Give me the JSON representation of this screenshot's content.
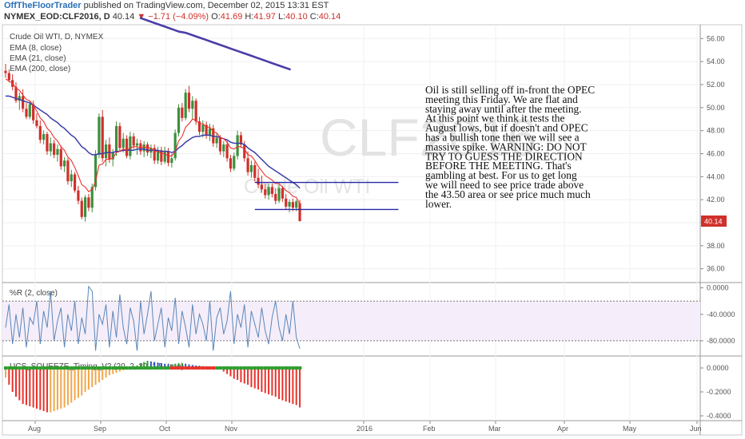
{
  "header": {
    "publisher": "OffTheFloorTrader",
    "published_text": "published on TradingView.com, December 02, 2015 13:31 EST",
    "symbol": "NYMEX_EOD:CLF2016, D",
    "last": "40.14",
    "change_arrow": "▼",
    "change": "−1.71 (−4.09%)",
    "o_label": "O:",
    "o_value": "41.69",
    "h_label": "H:",
    "h_value": "41.97",
    "l_label": "L:",
    "l_value": "40.10",
    "c_label": "C:",
    "c_value": "40.14"
  },
  "colors": {
    "up": "#3d8f3d",
    "down": "#d0302b",
    "ema8": "#e8322b",
    "ema21": "#3b3fa8",
    "ema200": "#4a3ea8",
    "level": "#2626a8",
    "wr": "#5a86b8",
    "hist_red": "#e8322b",
    "hist_orange": "#f2a74a",
    "hist_green": "#3b9a3b",
    "hist_blue": "#2f52c0",
    "dot_green": "#2e9e2e",
    "dot_red": "#e8322b"
  },
  "chart_data": [
    {
      "type": "candlestick",
      "title": "Crude Oil WTI, D, NYMEX",
      "watermark_symbol": "CLF2016",
      "watermark_name": "Crude Oil WTI",
      "legend": [
        "EMA (8, close)",
        "EMA (21, close)",
        "EMA (200, close)"
      ],
      "y_ticks": [
        "56.00",
        "54.00",
        "52.00",
        "50.00",
        "48.00",
        "46.00",
        "44.00",
        "42.00",
        "40.00",
        "38.00",
        "36.00"
      ],
      "ylim": [
        34.8,
        57.2
      ],
      "last_price_label": "40.14",
      "x_ticks": [
        "Aug",
        "Sep",
        "Oct",
        "Nov",
        "2016",
        "Feb",
        "Mar",
        "Apr",
        "May",
        "Jun"
      ],
      "levels": [
        43.5,
        41.15
      ],
      "ohlc": [
        [
          53.2,
          53.8,
          52.6,
          53.0
        ],
        [
          53.0,
          53.3,
          52.2,
          52.4
        ],
        [
          52.4,
          52.9,
          51.5,
          51.8
        ],
        [
          51.8,
          52.2,
          50.4,
          50.6
        ],
        [
          50.6,
          51.3,
          49.8,
          51.0
        ],
        [
          51.0,
          51.6,
          49.6,
          49.9
        ],
        [
          49.9,
          50.4,
          49.0,
          49.2
        ],
        [
          49.2,
          50.6,
          49.0,
          50.3
        ],
        [
          50.3,
          50.6,
          48.6,
          48.9
        ],
        [
          48.9,
          49.5,
          48.2,
          48.4
        ],
        [
          48.4,
          48.9,
          46.9,
          47.2
        ],
        [
          47.2,
          48.0,
          46.8,
          47.7
        ],
        [
          47.7,
          47.9,
          45.9,
          46.2
        ],
        [
          46.2,
          47.4,
          45.8,
          46.9
        ],
        [
          46.9,
          47.2,
          45.6,
          45.9
        ],
        [
          45.9,
          46.8,
          45.3,
          46.4
        ],
        [
          46.4,
          46.7,
          44.6,
          44.9
        ],
        [
          44.9,
          45.7,
          44.4,
          45.4
        ],
        [
          45.4,
          45.6,
          43.3,
          43.6
        ],
        [
          43.6,
          44.6,
          43.1,
          44.2
        ],
        [
          44.2,
          44.4,
          42.6,
          42.8
        ],
        [
          42.8,
          43.2,
          41.6,
          41.9
        ],
        [
          41.9,
          42.2,
          40.3,
          40.5
        ],
        [
          40.5,
          42.4,
          40.1,
          42.2
        ],
        [
          42.2,
          42.5,
          41.0,
          41.3
        ],
        [
          41.3,
          43.4,
          40.9,
          43.1
        ],
        [
          43.1,
          46.3,
          42.8,
          45.9
        ],
        [
          45.9,
          49.5,
          45.6,
          49.2
        ],
        [
          49.2,
          49.8,
          45.3,
          45.6
        ],
        [
          45.6,
          47.2,
          44.9,
          46.8
        ],
        [
          46.8,
          47.4,
          45.2,
          45.5
        ],
        [
          45.5,
          46.4,
          44.9,
          46.1
        ],
        [
          46.1,
          48.8,
          45.8,
          48.4
        ],
        [
          48.4,
          48.7,
          46.2,
          46.5
        ],
        [
          46.5,
          47.8,
          46.1,
          47.3
        ],
        [
          47.3,
          47.6,
          45.6,
          45.8
        ],
        [
          45.8,
          47.9,
          45.5,
          47.5
        ],
        [
          47.5,
          47.8,
          46.4,
          46.7
        ],
        [
          46.7,
          47.3,
          45.9,
          46.9
        ],
        [
          46.9,
          47.2,
          45.9,
          46.2
        ],
        [
          46.2,
          47.1,
          45.7,
          46.8
        ],
        [
          46.8,
          47.0,
          45.8,
          46.1
        ],
        [
          46.1,
          46.8,
          45.6,
          46.5
        ],
        [
          46.5,
          46.8,
          45.1,
          45.4
        ],
        [
          45.4,
          46.6,
          45.1,
          46.3
        ],
        [
          46.3,
          46.6,
          45.0,
          45.3
        ],
        [
          45.3,
          46.6,
          45.1,
          46.2
        ],
        [
          46.2,
          46.5,
          44.9,
          45.2
        ],
        [
          45.2,
          46.0,
          44.8,
          45.6
        ],
        [
          45.6,
          48.1,
          45.4,
          47.8
        ],
        [
          47.8,
          50.3,
          47.5,
          50.0
        ],
        [
          50.0,
          50.4,
          48.8,
          49.1
        ],
        [
          49.1,
          51.6,
          48.9,
          51.3
        ],
        [
          51.3,
          51.9,
          49.6,
          49.9
        ],
        [
          49.9,
          51.0,
          49.0,
          50.6
        ],
        [
          50.6,
          50.8,
          48.5,
          48.8
        ],
        [
          48.8,
          49.2,
          47.6,
          47.9
        ],
        [
          47.9,
          48.9,
          47.4,
          48.5
        ],
        [
          48.5,
          48.8,
          47.3,
          47.6
        ],
        [
          47.6,
          48.6,
          47.1,
          48.2
        ],
        [
          48.2,
          48.5,
          46.6,
          46.9
        ],
        [
          46.9,
          47.8,
          46.5,
          47.4
        ],
        [
          47.4,
          47.6,
          45.9,
          46.2
        ],
        [
          46.2,
          47.1,
          45.7,
          46.8
        ],
        [
          46.8,
          47.1,
          45.3,
          45.6
        ],
        [
          45.6,
          45.9,
          44.4,
          44.7
        ],
        [
          44.7,
          46.1,
          44.5,
          45.8
        ],
        [
          45.8,
          48.0,
          45.5,
          47.6
        ],
        [
          47.6,
          47.9,
          46.5,
          46.8
        ],
        [
          46.8,
          47.1,
          45.3,
          45.6
        ],
        [
          45.6,
          46.2,
          44.1,
          44.4
        ],
        [
          44.4,
          45.4,
          43.9,
          45.0
        ],
        [
          45.0,
          45.3,
          43.6,
          43.9
        ],
        [
          43.9,
          44.7,
          43.0,
          43.3
        ],
        [
          43.3,
          44.1,
          42.6,
          42.9
        ],
        [
          42.9,
          43.4,
          42.1,
          42.4
        ],
        [
          42.4,
          43.4,
          42.0,
          43.1
        ],
        [
          43.1,
          43.4,
          42.2,
          42.5
        ],
        [
          42.5,
          43.0,
          41.6,
          41.9
        ],
        [
          41.9,
          43.3,
          41.7,
          43.0
        ],
        [
          43.0,
          43.2,
          41.8,
          42.1
        ],
        [
          42.1,
          42.5,
          41.1,
          41.4
        ],
        [
          41.4,
          42.0,
          40.9,
          41.8
        ],
        [
          41.8,
          42.1,
          41.0,
          41.3
        ],
        [
          41.3,
          42.0,
          41.0,
          41.85
        ],
        [
          41.69,
          41.97,
          40.1,
          40.14
        ]
      ],
      "ema8": [
        52.5,
        52.3,
        52.1,
        51.7,
        51.5,
        51.1,
        50.7,
        50.6,
        50.2,
        49.7,
        49.1,
        48.8,
        48.2,
        47.9,
        47.4,
        47.1,
        46.6,
        46.3,
        45.7,
        45.4,
        44.8,
        44.1,
        43.3,
        43.1,
        42.7,
        42.9,
        43.6,
        45.0,
        45.1,
        45.5,
        45.5,
        45.6,
        46.1,
        46.2,
        46.4,
        46.3,
        46.5,
        46.6,
        46.6,
        46.5,
        46.6,
        46.5,
        46.5,
        46.2,
        46.2,
        46.0,
        46.0,
        45.8,
        45.8,
        46.2,
        47.1,
        47.5,
        48.3,
        48.6,
        49.0,
        48.9,
        48.6,
        48.6,
        48.3,
        48.3,
        47.9,
        47.8,
        47.4,
        47.3,
        47.0,
        46.5,
        46.4,
        46.6,
        46.6,
        46.4,
        45.9,
        45.8,
        45.4,
        44.9,
        44.5,
        44.1,
        43.9,
        43.7,
        43.4,
        43.4,
        43.1,
        42.8,
        42.6,
        42.3,
        42.2,
        41.6
      ],
      "ema21": [
        51.0,
        51.0,
        50.9,
        50.8,
        50.7,
        50.6,
        50.5,
        50.4,
        50.2,
        50.0,
        49.8,
        49.6,
        49.4,
        49.1,
        48.9,
        48.7,
        48.4,
        48.2,
        47.9,
        47.6,
        47.4,
        47.0,
        46.6,
        46.4,
        46.1,
        45.9,
        45.9,
        46.0,
        46.0,
        46.1,
        46.1,
        46.1,
        46.2,
        46.2,
        46.3,
        46.3,
        46.3,
        46.3,
        46.4,
        46.4,
        46.4,
        46.3,
        46.3,
        46.3,
        46.3,
        46.2,
        46.2,
        46.2,
        46.1,
        46.2,
        46.5,
        46.7,
        47.0,
        47.2,
        47.4,
        47.5,
        47.5,
        47.6,
        47.6,
        47.6,
        47.5,
        47.5,
        47.4,
        47.3,
        47.2,
        47.0,
        46.9,
        46.9,
        46.9,
        46.8,
        46.5,
        46.3,
        46.1,
        45.8,
        45.5,
        45.2,
        44.9,
        44.7,
        44.5,
        44.3,
        44.1,
        43.9,
        43.7,
        43.5,
        43.3,
        43.0
      ],
      "ema200": [
        57.8,
        57.6,
        57.4,
        57.2,
        57.0,
        56.8,
        56.6,
        56.5,
        56.3,
        56.1,
        55.9,
        55.7,
        55.5,
        55.3,
        55.1,
        54.9,
        54.7,
        54.5,
        54.3,
        54.1,
        53.9,
        53.7,
        53.5,
        53.3
      ]
    },
    {
      "type": "line",
      "title": "%R (2, close)",
      "y_ticks": [
        "0.0000",
        "-40.0000",
        "-80.0000"
      ],
      "ylim": [
        -103,
        8
      ],
      "band": [
        -20,
        -80
      ],
      "values": [
        -60,
        -25,
        -85,
        -40,
        -75,
        -30,
        -90,
        -45,
        -55,
        -20,
        -85,
        -35,
        -60,
        -5,
        -80,
        -50,
        -30,
        -90,
        -40,
        -65,
        -20,
        -85,
        -45,
        -70,
        2,
        -5,
        -95,
        -40,
        -55,
        -25,
        -90,
        -35,
        -75,
        -10,
        -60,
        -85,
        -30,
        -50,
        -95,
        -20,
        -70,
        -40,
        -5,
        -80,
        -55,
        -30,
        -90,
        -45,
        -65,
        -15,
        -85,
        -35,
        -60,
        -90,
        -25,
        -70,
        -40,
        -55,
        -80,
        -20,
        -95,
        -45,
        -30,
        -70,
        -50,
        -5,
        -85,
        -40,
        -60,
        -25,
        -90,
        -35,
        -55,
        -75,
        -30,
        -65,
        -85,
        -45,
        -20,
        -60,
        -80,
        -40,
        -70,
        -20,
        -75,
        -92
      ]
    },
    {
      "type": "bar",
      "title": "UCS_SQUEEZE_Timing_V2 (20, 2, 20, 1.5, true)",
      "y_ticks": [
        "0.0000",
        "-0.2000",
        "-0.4000"
      ],
      "ylim": [
        -0.44,
        0.1
      ],
      "values": [
        -0.08,
        -0.14,
        -0.2,
        -0.24,
        -0.27,
        -0.3,
        -0.31,
        -0.32,
        -0.33,
        -0.34,
        -0.35,
        -0.36,
        -0.37,
        -0.37,
        -0.36,
        -0.35,
        -0.34,
        -0.33,
        -0.31,
        -0.29,
        -0.27,
        -0.25,
        -0.23,
        -0.2,
        -0.18,
        -0.16,
        -0.14,
        -0.12,
        -0.1,
        -0.08,
        -0.06,
        -0.05,
        -0.04,
        -0.03,
        -0.02,
        -0.015,
        -0.01,
        0.01,
        0.02,
        0.04,
        0.05,
        0.06,
        0.055,
        0.05,
        0.045,
        0.04,
        0.035,
        0.03,
        0.03,
        0.035,
        0.04,
        0.04,
        0.035,
        0.03,
        0.025,
        0.02,
        0.02,
        0.015,
        0.01,
        0.01,
        0.005,
        0.003,
        -0.01,
        -0.03,
        -0.05,
        -0.07,
        -0.09,
        -0.1,
        -0.12,
        -0.13,
        -0.14,
        -0.16,
        -0.17,
        -0.18,
        -0.2,
        -0.21,
        -0.22,
        -0.23,
        -0.24,
        -0.26,
        -0.27,
        -0.28,
        -0.29,
        -0.3,
        -0.31,
        -0.33
      ]
    }
  ],
  "annotation": [
    "Oil is still selling off in-front the OPEC",
    "meeting this Friday.  We are flat and",
    "staying away until after the meeting.",
    "At this point we think it tests the",
    "August lows, but if doesn't and OPEC",
    "has a bullish tone then we will see a",
    "massive spike.  WARNING: DO NOT",
    "TRY TO GUESS THE DIRECTION",
    "BEFORE THE MEETING.  That's",
    "gambling at best.  For us to get long",
    "we will need to see price trade above",
    "the 43.50 area or see price much much",
    "lower."
  ]
}
